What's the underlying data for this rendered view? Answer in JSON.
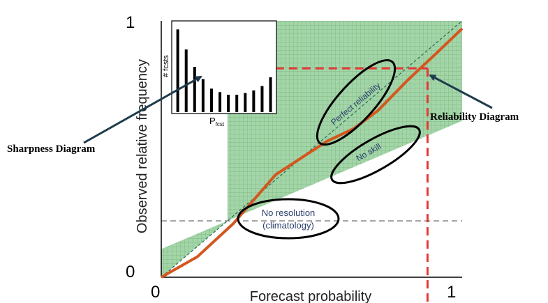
{
  "chart_data": {
    "type": "line",
    "xlabel": "Forecast probability",
    "ylabel": "Observed relative frequency",
    "x_ticks": [
      "0",
      "1"
    ],
    "y_ticks": [
      "0",
      "1"
    ],
    "xlim": [
      0,
      1
    ],
    "ylim": [
      0,
      1
    ],
    "climatology": 0.22,
    "series": [
      {
        "name": "",
        "x": [
          0.0,
          0.12,
          0.24,
          0.38,
          0.55,
          0.64,
          0.72,
          0.82,
          0.92,
          1.0
        ],
        "y": [
          0.0,
          0.08,
          0.21,
          0.4,
          0.53,
          0.58,
          0.65,
          0.77,
          0.88,
          0.97
        ]
      }
    ],
    "highlight_point": {
      "x": 0.885,
      "y": 0.815
    },
    "annotations": {
      "no_resolution_line1": "No resolution",
      "no_resolution_line2": "(climatology)",
      "perfect_reliability": "Perfect reliability",
      "no_skill": "No skill"
    }
  },
  "inset": {
    "ylabel": "# fcsts",
    "xlabel_main": "P",
    "xlabel_sub": "fcst",
    "bars": [
      0.95,
      0.72,
      0.52,
      0.38,
      0.27,
      0.23,
      0.2,
      0.2,
      0.22,
      0.25,
      0.3,
      0.4
    ]
  },
  "callouts": {
    "sharpness": "Sharpness Diagram",
    "reliability": "Reliability Diagram"
  },
  "colors": {
    "skill_fill": "#9fd3a4",
    "grid": "#6fae76",
    "curve": "#d4561e",
    "highlight": "#e53935",
    "arrow": "#1f3b4d"
  }
}
